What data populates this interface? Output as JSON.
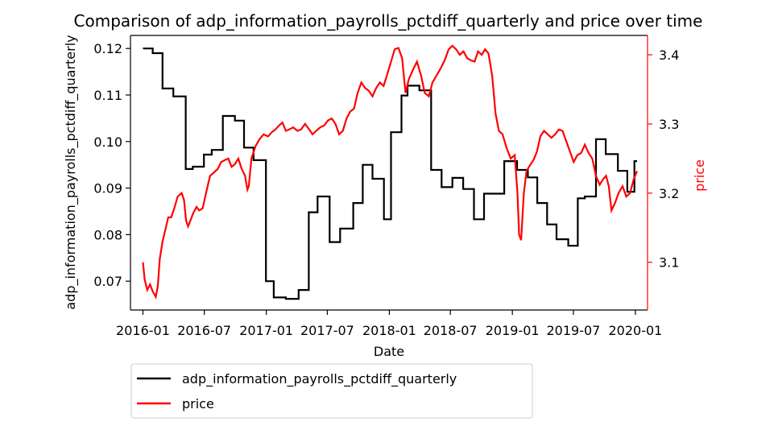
{
  "chart_data": {
    "type": "line",
    "title": "Comparison of adp_information_payrolls_pctdiff_quarterly and price over time",
    "xlabel": "Date",
    "ylabel_left": "adp_information_payrolls_pctdiff_quarterly",
    "ylabel_right": "price",
    "x_range": [
      "2015-11-25",
      "2020-02-06"
    ],
    "ylim_left": [
      0.0638,
      0.1228
    ],
    "ylim_right": [
      3.031,
      3.428
    ],
    "x_ticks": [
      "2016-01",
      "2016-07",
      "2017-01",
      "2017-07",
      "2018-01",
      "2018-07",
      "2019-01",
      "2019-07",
      "2020-01"
    ],
    "y_ticks_left": [
      "0.07",
      "0.08",
      "0.09",
      "0.10",
      "0.11",
      "0.12"
    ],
    "y_ticks_right": [
      "3.1",
      "3.2",
      "3.3",
      "3.4"
    ],
    "grid": false,
    "legend_position": "below the plot, left",
    "colors": {
      "adp": "#000000",
      "price": "#ff0000",
      "right_axis": "#ff0000"
    },
    "series": [
      {
        "name": "adp_information_payrolls_pctdiff_quarterly",
        "axis": "left",
        "color": "#000000",
        "points": [
          [
            "2016-01-01",
            0.12
          ],
          [
            "2016-01-30",
            0.12
          ],
          [
            "2016-01-30",
            0.119
          ],
          [
            "2016-02-28",
            0.119
          ],
          [
            "2016-02-28",
            0.1114
          ],
          [
            "2016-03-31",
            0.1114
          ],
          [
            "2016-03-31",
            0.1097
          ],
          [
            "2016-05-07",
            0.1097
          ],
          [
            "2016-05-07",
            0.0941
          ],
          [
            "2016-05-28",
            0.0941
          ],
          [
            "2016-05-28",
            0.0946
          ],
          [
            "2016-06-30",
            0.0946
          ],
          [
            "2016-06-30",
            0.0972
          ],
          [
            "2016-07-23",
            0.0972
          ],
          [
            "2016-07-23",
            0.0982
          ],
          [
            "2016-08-25",
            0.0982
          ],
          [
            "2016-08-25",
            0.1055
          ],
          [
            "2016-09-30",
            0.1055
          ],
          [
            "2016-09-30",
            0.1045
          ],
          [
            "2016-10-27",
            0.1045
          ],
          [
            "2016-10-27",
            0.0987
          ],
          [
            "2016-11-24",
            0.0987
          ],
          [
            "2016-11-24",
            0.096
          ],
          [
            "2016-12-31",
            0.096
          ],
          [
            "2016-12-31",
            0.07
          ],
          [
            "2017-01-23",
            0.07
          ],
          [
            "2017-01-23",
            0.0665
          ],
          [
            "2017-02-28",
            0.0665
          ],
          [
            "2017-02-28",
            0.0662
          ],
          [
            "2017-04-07",
            0.0662
          ],
          [
            "2017-04-07",
            0.0681
          ],
          [
            "2017-05-07",
            0.0681
          ],
          [
            "2017-05-07",
            0.0848
          ],
          [
            "2017-06-02",
            0.0848
          ],
          [
            "2017-06-02",
            0.0882
          ],
          [
            "2017-07-08",
            0.0882
          ],
          [
            "2017-07-08",
            0.0784
          ],
          [
            "2017-08-08",
            0.0784
          ],
          [
            "2017-08-08",
            0.0813
          ],
          [
            "2017-09-16",
            0.0813
          ],
          [
            "2017-09-16",
            0.0868
          ],
          [
            "2017-10-14",
            0.0868
          ],
          [
            "2017-10-14",
            0.095
          ],
          [
            "2017-11-12",
            0.095
          ],
          [
            "2017-11-12",
            0.092
          ],
          [
            "2017-12-16",
            0.092
          ],
          [
            "2017-12-16",
            0.0833
          ],
          [
            "2018-01-06",
            0.0833
          ],
          [
            "2018-01-06",
            0.102
          ],
          [
            "2018-02-06",
            0.102
          ],
          [
            "2018-02-06",
            0.1099
          ],
          [
            "2018-02-24",
            0.1099
          ],
          [
            "2018-02-24",
            0.112
          ],
          [
            "2018-03-31",
            0.112
          ],
          [
            "2018-03-31",
            0.111
          ],
          [
            "2018-05-05",
            0.111
          ],
          [
            "2018-05-05",
            0.0939
          ],
          [
            "2018-06-05",
            0.0939
          ],
          [
            "2018-06-05",
            0.0902
          ],
          [
            "2018-07-07",
            0.0902
          ],
          [
            "2018-07-07",
            0.0922
          ],
          [
            "2018-08-08",
            0.0922
          ],
          [
            "2018-08-08",
            0.0898
          ],
          [
            "2018-09-09",
            0.0898
          ],
          [
            "2018-09-09",
            0.0833
          ],
          [
            "2018-10-09",
            0.0833
          ],
          [
            "2018-10-09",
            0.0888
          ],
          [
            "2018-12-08",
            0.0888
          ],
          [
            "2018-12-08",
            0.0958
          ],
          [
            "2019-01-15",
            0.0958
          ],
          [
            "2019-01-15",
            0.0939
          ],
          [
            "2019-02-16",
            0.0939
          ],
          [
            "2019-02-16",
            0.0923
          ],
          [
            "2019-03-16",
            0.0923
          ],
          [
            "2019-03-16",
            0.0868
          ],
          [
            "2019-04-14",
            0.0868
          ],
          [
            "2019-04-14",
            0.0822
          ],
          [
            "2019-05-12",
            0.0822
          ],
          [
            "2019-05-12",
            0.079
          ],
          [
            "2019-06-16",
            0.079
          ],
          [
            "2019-06-16",
            0.0776
          ],
          [
            "2019-07-14",
            0.0776
          ],
          [
            "2019-07-14",
            0.0878
          ],
          [
            "2019-08-04",
            0.0878
          ],
          [
            "2019-08-04",
            0.0882
          ],
          [
            "2019-09-06",
            0.0882
          ],
          [
            "2019-09-06",
            0.1005
          ],
          [
            "2019-10-05",
            0.1005
          ],
          [
            "2019-10-05",
            0.0973
          ],
          [
            "2019-11-10",
            0.0973
          ],
          [
            "2019-11-10",
            0.0937
          ],
          [
            "2019-12-08",
            0.0937
          ],
          [
            "2019-12-08",
            0.0892
          ],
          [
            "2019-12-29",
            0.0892
          ],
          [
            "2019-12-29",
            0.0958
          ],
          [
            "2020-01-06",
            0.0958
          ]
        ]
      },
      {
        "name": "price",
        "axis": "right",
        "color": "#ff0000",
        "points": [
          [
            "2016-01-01",
            3.1
          ],
          [
            "2016-01-06",
            3.075
          ],
          [
            "2016-01-14",
            3.06
          ],
          [
            "2016-01-22",
            3.068
          ],
          [
            "2016-01-30",
            3.058
          ],
          [
            "2016-02-08",
            3.05
          ],
          [
            "2016-02-14",
            3.065
          ],
          [
            "2016-02-20",
            3.105
          ],
          [
            "2016-02-28",
            3.13
          ],
          [
            "2016-03-08",
            3.148
          ],
          [
            "2016-03-16",
            3.165
          ],
          [
            "2016-03-25",
            3.165
          ],
          [
            "2016-04-03",
            3.178
          ],
          [
            "2016-04-13",
            3.195
          ],
          [
            "2016-04-25",
            3.2
          ],
          [
            "2016-05-02",
            3.19
          ],
          [
            "2016-05-08",
            3.16
          ],
          [
            "2016-05-14",
            3.152
          ],
          [
            "2016-05-22",
            3.162
          ],
          [
            "2016-05-30",
            3.172
          ],
          [
            "2016-06-08",
            3.18
          ],
          [
            "2016-06-16",
            3.175
          ],
          [
            "2016-06-26",
            3.178
          ],
          [
            "2016-07-07",
            3.202
          ],
          [
            "2016-07-18",
            3.225
          ],
          [
            "2016-07-30",
            3.23
          ],
          [
            "2016-08-10",
            3.235
          ],
          [
            "2016-08-20",
            3.245
          ],
          [
            "2016-09-01",
            3.248
          ],
          [
            "2016-09-10",
            3.25
          ],
          [
            "2016-09-20",
            3.238
          ],
          [
            "2016-09-30",
            3.242
          ],
          [
            "2016-10-10",
            3.25
          ],
          [
            "2016-10-20",
            3.235
          ],
          [
            "2016-10-30",
            3.225
          ],
          [
            "2016-11-06",
            3.205
          ],
          [
            "2016-11-10",
            3.21
          ],
          [
            "2016-11-18",
            3.25
          ],
          [
            "2016-11-30",
            3.268
          ],
          [
            "2016-12-12",
            3.278
          ],
          [
            "2016-12-24",
            3.285
          ],
          [
            "2017-01-06",
            3.282
          ],
          [
            "2017-01-17",
            3.288
          ],
          [
            "2017-01-28",
            3.292
          ],
          [
            "2017-02-08",
            3.298
          ],
          [
            "2017-02-18",
            3.302
          ],
          [
            "2017-02-28",
            3.29
          ],
          [
            "2017-03-10",
            3.292
          ],
          [
            "2017-03-22",
            3.295
          ],
          [
            "2017-04-03",
            3.29
          ],
          [
            "2017-04-14",
            3.292
          ],
          [
            "2017-04-26",
            3.3
          ],
          [
            "2017-05-07",
            3.293
          ],
          [
            "2017-05-18",
            3.285
          ],
          [
            "2017-05-29",
            3.29
          ],
          [
            "2017-06-10",
            3.295
          ],
          [
            "2017-06-22",
            3.298
          ],
          [
            "2017-07-03",
            3.305
          ],
          [
            "2017-07-14",
            3.308
          ],
          [
            "2017-07-25",
            3.3
          ],
          [
            "2017-08-05",
            3.285
          ],
          [
            "2017-08-16",
            3.29
          ],
          [
            "2017-08-27",
            3.308
          ],
          [
            "2017-09-07",
            3.318
          ],
          [
            "2017-09-18",
            3.322
          ],
          [
            "2017-09-29",
            3.345
          ],
          [
            "2017-10-10",
            3.36
          ],
          [
            "2017-10-21",
            3.352
          ],
          [
            "2017-11-01",
            3.348
          ],
          [
            "2017-11-12",
            3.34
          ],
          [
            "2017-11-23",
            3.352
          ],
          [
            "2017-12-04",
            3.36
          ],
          [
            "2017-12-15",
            3.355
          ],
          [
            "2017-12-26",
            3.372
          ],
          [
            "2018-01-06",
            3.39
          ],
          [
            "2018-01-17",
            3.408
          ],
          [
            "2018-01-28",
            3.41
          ],
          [
            "2018-02-08",
            3.395
          ],
          [
            "2018-02-18",
            3.345
          ],
          [
            "2018-02-28",
            3.365
          ],
          [
            "2018-03-12",
            3.378
          ],
          [
            "2018-03-24",
            3.39
          ],
          [
            "2018-04-05",
            3.37
          ],
          [
            "2018-04-16",
            3.345
          ],
          [
            "2018-04-28",
            3.34
          ],
          [
            "2018-05-09",
            3.36
          ],
          [
            "2018-05-21",
            3.37
          ],
          [
            "2018-06-02",
            3.38
          ],
          [
            "2018-06-14",
            3.392
          ],
          [
            "2018-06-26",
            3.408
          ],
          [
            "2018-07-07",
            3.413
          ],
          [
            "2018-07-18",
            3.408
          ],
          [
            "2018-07-29",
            3.4
          ],
          [
            "2018-08-09",
            3.405
          ],
          [
            "2018-08-20",
            3.395
          ],
          [
            "2018-08-31",
            3.392
          ],
          [
            "2018-09-11",
            3.39
          ],
          [
            "2018-09-21",
            3.405
          ],
          [
            "2018-10-02",
            3.4
          ],
          [
            "2018-10-12",
            3.408
          ],
          [
            "2018-10-22",
            3.402
          ],
          [
            "2018-11-02",
            3.37
          ],
          [
            "2018-11-12",
            3.315
          ],
          [
            "2018-11-22",
            3.29
          ],
          [
            "2018-12-03",
            3.285
          ],
          [
            "2018-12-15",
            3.265
          ],
          [
            "2018-12-27",
            3.25
          ],
          [
            "2019-01-08",
            3.255
          ],
          [
            "2019-01-16",
            3.2
          ],
          [
            "2019-01-21",
            3.14
          ],
          [
            "2019-01-27",
            3.132
          ],
          [
            "2019-02-04",
            3.2
          ],
          [
            "2019-02-12",
            3.232
          ],
          [
            "2019-02-22",
            3.24
          ],
          [
            "2019-03-05",
            3.248
          ],
          [
            "2019-03-15",
            3.26
          ],
          [
            "2019-03-25",
            3.282
          ],
          [
            "2019-04-05",
            3.29
          ],
          [
            "2019-04-16",
            3.285
          ],
          [
            "2019-04-27",
            3.28
          ],
          [
            "2019-05-08",
            3.285
          ],
          [
            "2019-05-19",
            3.292
          ],
          [
            "2019-05-30",
            3.29
          ],
          [
            "2019-06-10",
            3.275
          ],
          [
            "2019-06-21",
            3.26
          ],
          [
            "2019-07-02",
            3.245
          ],
          [
            "2019-07-13",
            3.255
          ],
          [
            "2019-07-24",
            3.258
          ],
          [
            "2019-08-04",
            3.27
          ],
          [
            "2019-08-15",
            3.258
          ],
          [
            "2019-08-26",
            3.25
          ],
          [
            "2019-09-06",
            3.225
          ],
          [
            "2019-09-17",
            3.212
          ],
          [
            "2019-09-27",
            3.22
          ],
          [
            "2019-10-06",
            3.225
          ],
          [
            "2019-10-14",
            3.21
          ],
          [
            "2019-10-22",
            3.175
          ],
          [
            "2019-11-01",
            3.185
          ],
          [
            "2019-11-12",
            3.2
          ],
          [
            "2019-11-24",
            3.21
          ],
          [
            "2019-12-05",
            3.195
          ],
          [
            "2019-12-16",
            3.2
          ],
          [
            "2019-12-27",
            3.22
          ],
          [
            "2020-01-06",
            3.232
          ]
        ]
      }
    ]
  }
}
